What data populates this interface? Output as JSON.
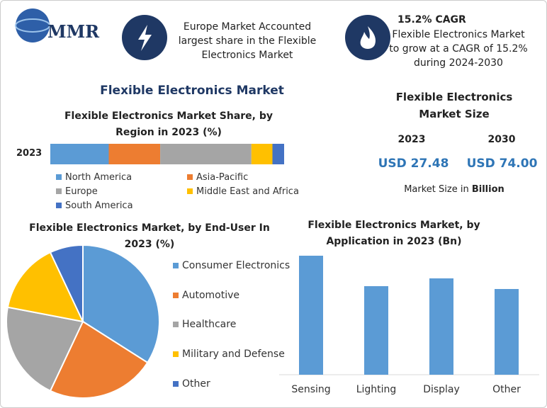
{
  "header": {
    "logo": "MMR",
    "callout": "Europe Market Accounted largest share in the Flexible Electronics Market",
    "cagr_title": "15.2% CAGR",
    "cagr_text": "Flexible Electronics Market to grow at a CAGR of 15.2% during 2024-2030"
  },
  "main_title": "Flexible Electronics Market",
  "market_size": {
    "title": "Flexible Electronics Market Size",
    "years": [
      "2023",
      "2030"
    ],
    "values": [
      "USD 27.48",
      "USD 74.00"
    ],
    "note": "Market Size in",
    "note_unit": "Billion"
  },
  "chart_data": [
    {
      "type": "stacked-bar",
      "title": "Flexible Electronics Market Share, by Region in 2023 (%)",
      "categories": [
        "2023"
      ],
      "series": [
        {
          "name": "North America",
          "color": "#5b9bd5",
          "values": [
            25
          ]
        },
        {
          "name": "Asia-Pacific",
          "color": "#ed7d31",
          "values": [
            22
          ]
        },
        {
          "name": "Europe",
          "color": "#a5a5a5",
          "values": [
            39
          ]
        },
        {
          "name": "Middle East and Africa",
          "color": "#ffc000",
          "values": [
            9
          ]
        },
        {
          "name": "South America",
          "color": "#4472c4",
          "values": [
            5
          ]
        }
      ]
    },
    {
      "type": "pie",
      "title": "Flexible Electronics Market, by End-User In 2023 (%)",
      "categories": [
        "Consumer Electronics",
        "Automotive",
        "Healthcare",
        "Military and Defense",
        "Other"
      ],
      "values": [
        34,
        23,
        21,
        15,
        7
      ],
      "colors": [
        "#5b9bd5",
        "#ed7d31",
        "#a5a5a5",
        "#ffc000",
        "#4472c4"
      ]
    },
    {
      "type": "bar",
      "title": "Flexible Electronics Market, by Application in 2023 (Bn)",
      "categories": [
        "Sensing",
        "Lighting",
        "Display",
        "Other"
      ],
      "values": [
        8.4,
        6.25,
        6.8,
        6.05
      ],
      "color": "#5b9bd5"
    }
  ]
}
